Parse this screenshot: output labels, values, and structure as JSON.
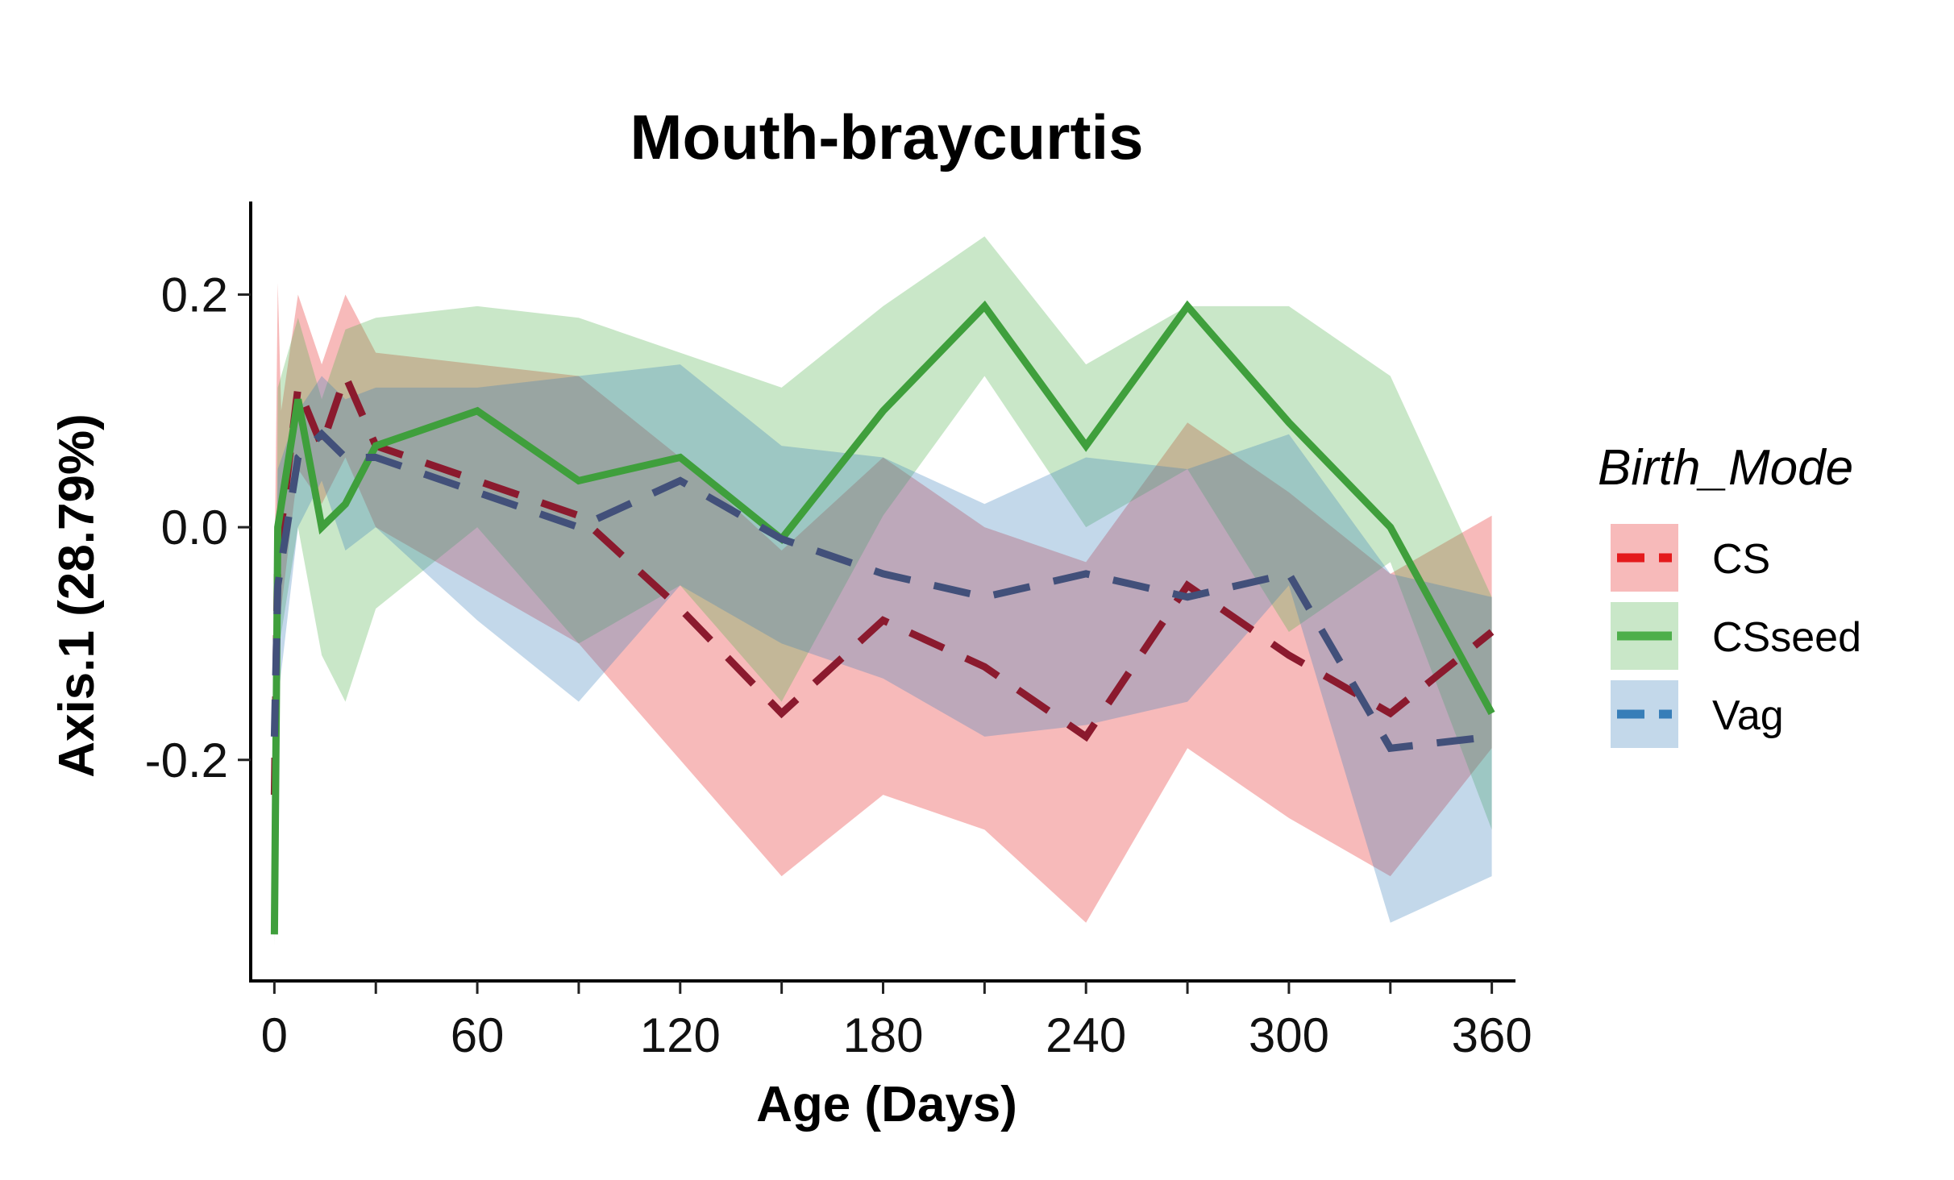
{
  "chart_data": {
    "type": "line",
    "title": "Mouth-braycurtis",
    "xlabel": "Age (Days)",
    "ylabel": "Axis.1 (28.79%)",
    "xlim": [
      -7,
      367
    ],
    "ylim": [
      -0.39,
      0.28
    ],
    "x_ticks": [
      0,
      60,
      120,
      180,
      240,
      300,
      360
    ],
    "x_tick_labels": [
      "0",
      "60",
      "120",
      "180",
      "240",
      "300",
      "360"
    ],
    "x_minor_ticks": [
      30,
      90,
      150,
      210,
      270,
      330
    ],
    "y_ticks": [
      0.2,
      0.0,
      -0.2
    ],
    "y_tick_labels": [
      "0.2",
      "0.0",
      "-0.2"
    ],
    "grid": false,
    "legend": {
      "title": "Birth_Mode",
      "position": "right"
    },
    "series": [
      {
        "name": "CS",
        "color": "#e41a1c",
        "line_color": "#8b1a2e",
        "line_style": "dashed",
        "x": [
          0,
          1,
          2,
          7,
          14,
          21,
          30,
          60,
          90,
          120,
          150,
          180,
          210,
          240,
          270,
          300,
          330,
          360
        ],
        "y": [
          -0.23,
          -0.02,
          0.0,
          0.12,
          0.07,
          0.13,
          0.07,
          0.04,
          0.01,
          -0.07,
          -0.16,
          -0.08,
          -0.12,
          -0.18,
          -0.05,
          -0.11,
          -0.16,
          -0.09
        ],
        "lower": [
          -0.33,
          -0.12,
          -0.07,
          0.05,
          0.02,
          0.06,
          0.0,
          -0.05,
          -0.1,
          -0.2,
          -0.3,
          -0.23,
          -0.26,
          -0.34,
          -0.19,
          -0.25,
          -0.3,
          -0.19
        ],
        "upper": [
          -0.05,
          0.21,
          0.1,
          0.2,
          0.14,
          0.2,
          0.15,
          0.14,
          0.13,
          0.06,
          -0.02,
          0.06,
          0.0,
          -0.03,
          0.09,
          0.03,
          -0.04,
          0.01
        ]
      },
      {
        "name": "CSseed",
        "color": "#4daf4a",
        "line_color": "#3f9f3c",
        "line_style": "solid",
        "x": [
          0,
          1,
          7,
          14,
          21,
          30,
          60,
          90,
          120,
          150,
          180,
          210,
          240,
          270,
          300,
          330,
          360
        ],
        "y": [
          -0.35,
          0.0,
          0.11,
          0.0,
          0.02,
          0.07,
          0.1,
          0.04,
          0.06,
          -0.01,
          0.1,
          0.19,
          0.07,
          0.19,
          0.09,
          0.0,
          -0.16
        ],
        "lower": [
          -0.36,
          -0.11,
          0.0,
          -0.11,
          -0.15,
          -0.07,
          0.0,
          -0.1,
          -0.05,
          -0.15,
          0.01,
          0.13,
          0.0,
          0.05,
          -0.09,
          -0.03,
          -0.26
        ],
        "upper": [
          -0.33,
          0.12,
          0.18,
          0.11,
          0.17,
          0.18,
          0.19,
          0.18,
          0.15,
          0.12,
          0.19,
          0.25,
          0.14,
          0.19,
          0.19,
          0.13,
          -0.06
        ]
      },
      {
        "name": "Vag",
        "color": "#377eb8",
        "line_color": "#42507a",
        "line_style": "dashed",
        "x": [
          0,
          1,
          7,
          14,
          21,
          30,
          60,
          90,
          120,
          150,
          180,
          210,
          240,
          270,
          300,
          330,
          360
        ],
        "y": [
          -0.18,
          -0.05,
          0.06,
          0.08,
          0.06,
          0.06,
          0.03,
          0.0,
          0.04,
          -0.01,
          -0.04,
          -0.06,
          -0.04,
          -0.06,
          -0.04,
          -0.19,
          -0.18
        ],
        "lower": [
          -0.19,
          -0.15,
          0.0,
          0.04,
          -0.02,
          0.0,
          -0.08,
          -0.15,
          -0.05,
          -0.1,
          -0.13,
          -0.18,
          -0.17,
          -0.15,
          -0.05,
          -0.34,
          -0.3
        ],
        "upper": [
          -0.15,
          0.05,
          0.1,
          0.13,
          0.11,
          0.12,
          0.12,
          0.13,
          0.14,
          0.07,
          0.06,
          0.02,
          0.06,
          0.05,
          0.08,
          -0.04,
          -0.06
        ]
      }
    ]
  }
}
